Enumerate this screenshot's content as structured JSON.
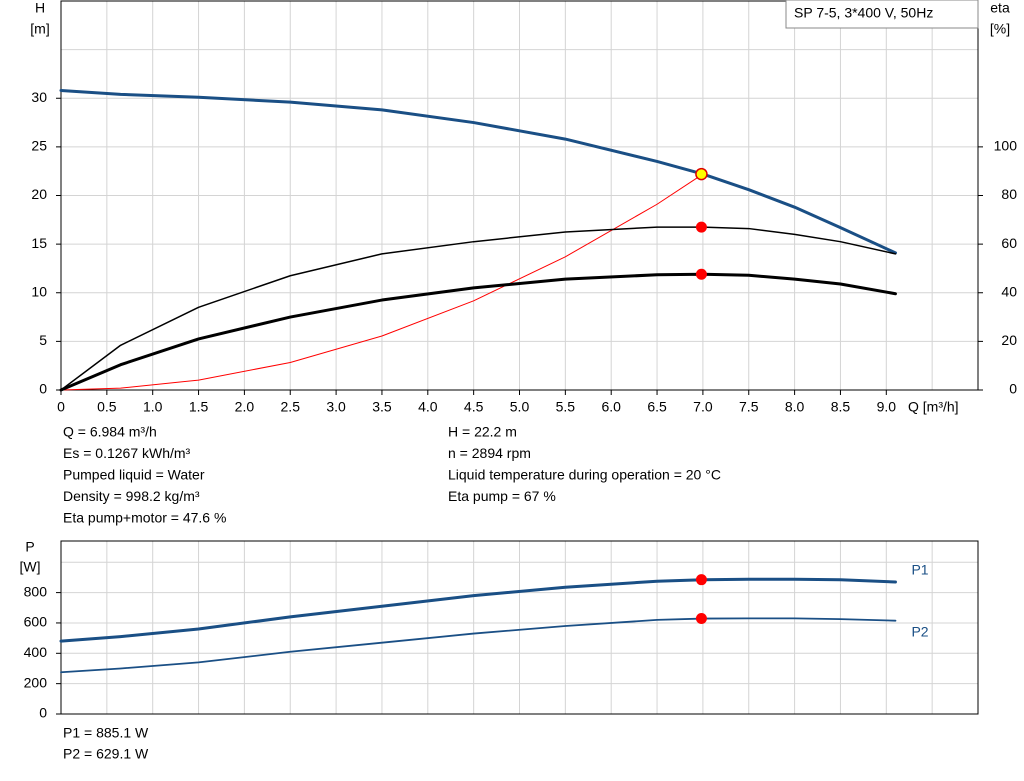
{
  "chart_data": [
    {
      "type": "line",
      "title": "SP 7-5, 3*400 V, 50Hz",
      "x_label": "Q [m³/h]",
      "y_label": "H",
      "y_unit": "[m]",
      "y2_label": "eta",
      "y2_unit": "[%]",
      "x": [
        0,
        0.65,
        1.5,
        2.5,
        3.5,
        4.5,
        5.5,
        6.5,
        7.0,
        7.5,
        8.0,
        8.5,
        9.1
      ],
      "series": [
        {
          "color": "#1a4f85",
          "values": [
            30.8,
            30.4,
            30.1,
            29.6,
            28.8,
            27.5,
            25.8,
            23.5,
            22.2,
            20.6,
            18.8,
            16.7,
            14.1
          ]
        },
        {
          "color": "#ff0000",
          "values": [
            0,
            0.19,
            1.02,
            2.83,
            5.55,
            9.17,
            13.7,
            19.1,
            22.2,
            null,
            null,
            null,
            null
          ]
        },
        {
          "color": "#000000",
          "axis": "y2",
          "values": [
            0,
            18.4,
            34,
            47,
            56,
            61,
            65,
            67,
            67,
            66.4,
            64,
            61,
            56
          ]
        },
        {
          "color": "#000000",
          "axis": "y2",
          "values": [
            0,
            10.4,
            21,
            30,
            37,
            42,
            45.6,
            47.4,
            47.6,
            47.2,
            45.6,
            43.6,
            39.6
          ]
        }
      ],
      "markers": [
        {
          "x": 6.984,
          "value": 22.2,
          "color": "#ffff00"
        },
        {
          "x": 6.984,
          "value": 67,
          "axis": "y2",
          "color": "#ff0000"
        },
        {
          "x": 6.984,
          "value": 47.6,
          "axis": "y2",
          "color": "#ff0000"
        }
      ],
      "xlim": [
        0,
        10
      ],
      "xticks": [
        0,
        0.5,
        {
          "value": 1,
          "label": "1.0"
        },
        1.5,
        {
          "value": 2,
          "label": "2.0"
        },
        2.5,
        {
          "value": 3,
          "label": "3.0"
        },
        3.5,
        {
          "value": 4,
          "label": "4.0"
        },
        4.5,
        {
          "value": 5,
          "label": "5.0"
        },
        5.5,
        {
          "value": 6,
          "label": "6.0"
        },
        6.5,
        {
          "value": 7,
          "label": "7.0"
        },
        7.5,
        {
          "value": 8,
          "label": "8.0"
        },
        8.5,
        {
          "value": 9,
          "label": "9.0"
        }
      ],
      "xgrid": [
        0,
        0.5,
        1,
        1.5,
        2,
        2.5,
        3,
        3.5,
        4,
        4.5,
        5,
        5.5,
        6,
        6.5,
        7,
        7.5,
        8,
        8.5,
        9,
        9.5
      ],
      "ylim": [
        0,
        40
      ],
      "yticks": [
        0,
        5,
        10,
        15,
        20,
        25,
        30
      ],
      "ygrid": [
        0,
        5,
        10,
        15,
        20,
        25,
        30,
        35
      ],
      "y2lim": [
        0,
        160
      ],
      "y2ticks": [
        0,
        20,
        40,
        60,
        80,
        100
      ],
      "grid": true
    },
    {
      "type": "line",
      "y_label": "P",
      "y_unit": "[W]",
      "x": [
        0,
        0.65,
        1.5,
        2.5,
        3.5,
        4.5,
        5.5,
        6.5,
        7.0,
        7.5,
        8.0,
        8.5,
        9.1
      ],
      "series": [
        {
          "name": "P1",
          "color": "#1a4f85",
          "values": [
            480,
            510,
            560,
            640,
            710,
            780,
            835,
            875,
            885,
            888,
            888,
            885,
            870
          ]
        },
        {
          "name": "P2",
          "color": "#1a4f85",
          "values": [
            275,
            300,
            340,
            410,
            470,
            530,
            580,
            620,
            629,
            630,
            630,
            625,
            615
          ]
        }
      ],
      "markers": [
        {
          "x": 6.984,
          "value": 885.1,
          "color": "#ff0000"
        },
        {
          "x": 6.984,
          "value": 629.1,
          "color": "#ff0000"
        }
      ],
      "xlim": [
        0,
        10
      ],
      "xgrid": [
        0,
        0.5,
        1,
        1.5,
        2,
        2.5,
        3,
        3.5,
        4,
        4.5,
        5,
        5.5,
        6,
        6.5,
        7,
        7.5,
        8,
        8.5,
        9,
        9.5
      ],
      "ylim": [
        0,
        1140
      ],
      "yticks": [
        0,
        200,
        400,
        600,
        800
      ],
      "ygrid": [
        0,
        200,
        400,
        600,
        800,
        1000
      ],
      "grid": true
    }
  ],
  "info_left": [
    "Q = 6.984 m³/h",
    "Es = 0.1267 kWh/m³",
    "Pumped liquid = Water",
    "Density = 998.2 kg/m³",
    "Eta pump+motor = 47.6 %"
  ],
  "info_right": [
    "H = 22.2 m",
    "n = 2894 rpm",
    "Liquid temperature during operation = 20 °C",
    "Eta pump = 67 %"
  ],
  "power_info": [
    "P1 = 885.1 W",
    "P2 = 629.1 W"
  ]
}
